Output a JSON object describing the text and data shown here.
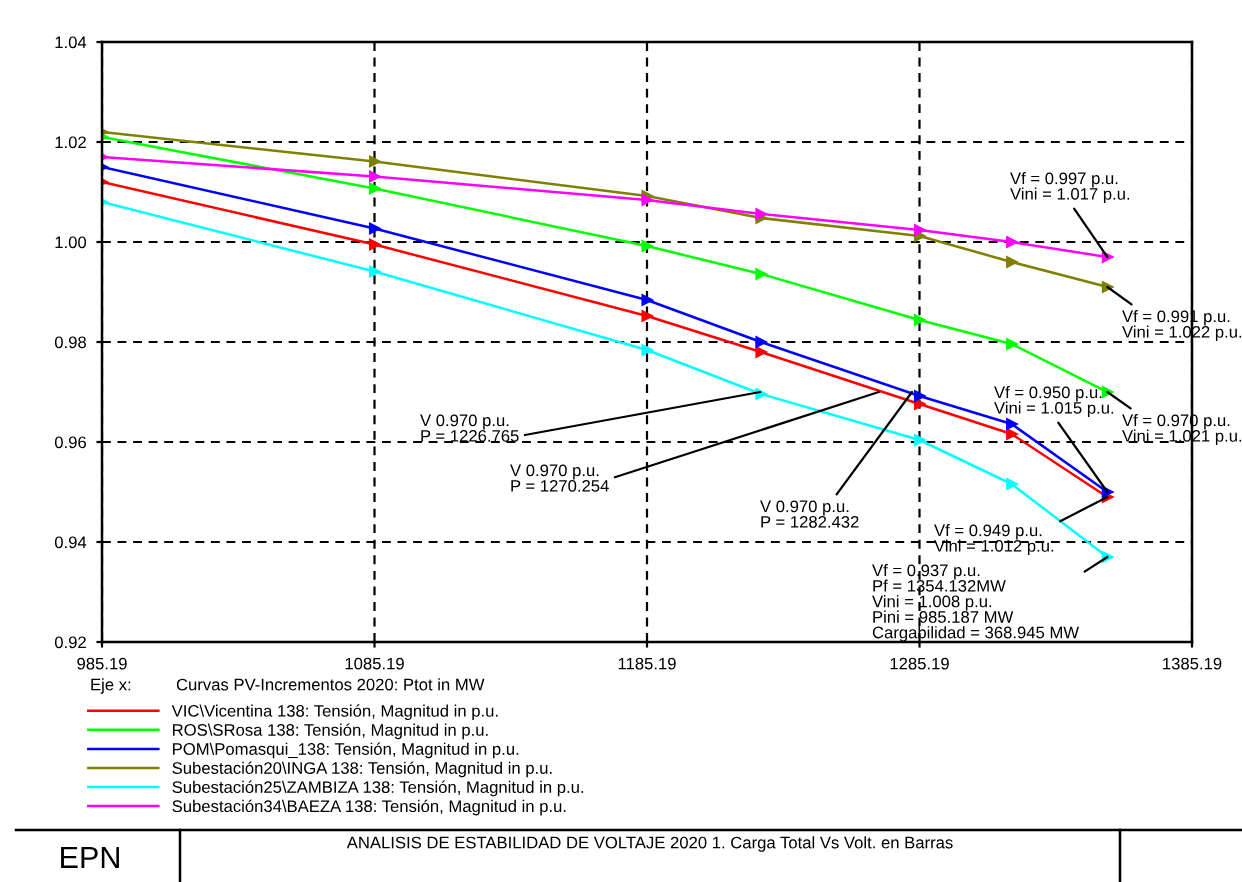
{
  "chart_data": {
    "type": "line",
    "title": "ANALISIS DE ESTABILIDAD DE VOLTAJE 2020 1. Carga Total Vs Volt. en Barras",
    "xlabel": "Curvas PV-Incrementos 2020: Ptot in MW",
    "x": [
      985.19,
      1085.19,
      1185.19,
      1227,
      1285.19,
      1319,
      1354.132
    ],
    "series": [
      {
        "name": "VIC\\Vicentina 138: Tensión, Magnitud in p.u.",
        "color": "#ff0000",
        "values": [
          1.012,
          0.9995,
          0.9852,
          0.978,
          0.9676,
          0.9616,
          0.949
        ]
      },
      {
        "name": "ROS\\SRosa 138: Tensión, Magnitud in p.u.",
        "color": "#00ff00",
        "values": [
          1.021,
          1.0107,
          0.9992,
          0.9936,
          0.9844,
          0.9796,
          0.97
        ]
      },
      {
        "name": "POM\\Pomasqui_138: Tensión, Magnitud in p.u.",
        "color": "#0000ff",
        "values": [
          1.015,
          1.0027,
          0.9884,
          0.98,
          0.9692,
          0.9636,
          0.95
        ]
      },
      {
        "name": "Subestación20\\INGA 138: Tensión, Magnitud in p.u.",
        "color": "#808000",
        "values": [
          1.022,
          1.0161,
          1.0092,
          1.0048,
          1.0012,
          0.996,
          0.991
        ]
      },
      {
        "name": "Subestación25\\ZAMBIZA 138: Tensión, Magnitud in p.u.",
        "color": "#00ffff",
        "values": [
          1.008,
          0.9941,
          0.9784,
          0.9696,
          0.9604,
          0.9516,
          0.937
        ]
      },
      {
        "name": "Subestación34\\BAEZA 138: Tensión, Magnitud in p.u.",
        "color": "#ff00ff",
        "values": [
          1.017,
          1.0131,
          1.0084,
          1.0056,
          1.0024,
          1.0,
          0.997
        ]
      }
    ],
    "xlim": [
      985.19,
      1385.19
    ],
    "xticks": [
      985.19,
      1085.19,
      1185.19,
      1285.19,
      1385.19
    ],
    "ylim": [
      0.92,
      1.04
    ],
    "yticks": [
      0.92,
      0.94,
      0.96,
      0.98,
      {
        "value": 1.0,
        "label": "1.00"
      },
      1.02,
      1.04
    ],
    "grid": true,
    "legend": "bottom",
    "marker": "triangle",
    "line_style": "solid",
    "annotations": [
      {
        "text": "V 0.970 p.u.\nP = 1226.765",
        "x": 1226.765,
        "y": 0.97
      },
      {
        "text": "V 0.970 p.u.\nP = 1270.254",
        "x": 1270.254,
        "y": 0.97
      },
      {
        "text": "V 0.970 p.u.\nP = 1282.432",
        "x": 1282.432,
        "y": 0.97
      },
      {
        "text": "Vf = 0.997 p.u.\nVini = 1.017 p.u.",
        "x": 1354.132,
        "y": 0.997
      },
      {
        "text": "Vf = 0.991 p.u.\nVini = 1.022 p.u.",
        "x": 1354.132,
        "y": 0.991
      },
      {
        "text": "Vf = 0.970 p.u.\nVini = 1.021 p.u.",
        "x": 1354.132,
        "y": 0.97
      },
      {
        "text": "Vf = 0.950 p.u.\nVini = 1.015 p.u.",
        "x": 1354.132,
        "y": 0.95
      },
      {
        "text": "Vf = 0.949 p.u.\nVini = 1.012 p.u.",
        "x": 1354.132,
        "y": 0.949
      },
      {
        "text": "Vf = 0.937 p.u.\nPf = 1354.132MW\nVini = 1.008 p.u.\nPini = 985.187 MW\nCargabilidad = 368.945 MW",
        "x": 1354.132,
        "y": 0.937
      },
      "Eje x:",
      "EPN"
    ]
  }
}
